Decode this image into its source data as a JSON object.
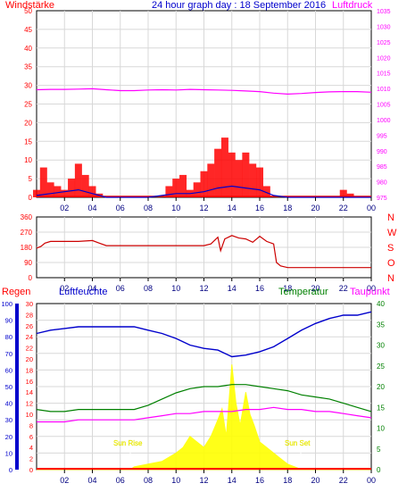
{
  "colors": {
    "wind": "#ff0000",
    "gust_bar": "#ff0000",
    "wind_avg": "#0000cc",
    "wind_direction_avg": "#008000",
    "pressure": "#ff00ff",
    "direction": "#cc0000",
    "humidity": "#0000cc",
    "temperature": "#008000",
    "dewpoint": "#ff00ff",
    "solar": "#ffff00",
    "rain": "#ff0000",
    "sun_label": "#ffff00",
    "plot_bg": "#ffffff",
    "grid": "#d8d8d8",
    "axis_red": "#ff0000",
    "axis_blue": "#0000cc",
    "axis_green": "#008000",
    "axis_magenta": "#ff00ff"
  },
  "header": {
    "title": "24 hour graph day : 18 September 2016",
    "left_label": "Windstärke",
    "right_label": "Luftdruck"
  },
  "chart_data": [
    {
      "type": "line",
      "panel": "wind-pressure",
      "title": "24 hour graph day : 18 September 2016",
      "x_ticks": [
        "02",
        "04",
        "06",
        "08",
        "10",
        "12",
        "14",
        "16",
        "18",
        "20",
        "22",
        "00"
      ],
      "x_range_hours": [
        0,
        24
      ],
      "y_left": {
        "label": "Windstärke",
        "range": [
          0,
          50
        ],
        "ticks": [
          0,
          5,
          10,
          15,
          20,
          25,
          30,
          35,
          40,
          45,
          50
        ]
      },
      "y_right": {
        "label": "Luftdruck",
        "range": [
          975,
          1035
        ],
        "ticks": [
          975,
          980,
          985,
          990,
          995,
          1000,
          1005,
          1010,
          1015,
          1020,
          1025,
          1030,
          1035
        ]
      },
      "grid": true,
      "series": [
        {
          "name": "Luftdruck",
          "axis": "right",
          "x": [
            0,
            1,
            2,
            3,
            4,
            5,
            6,
            7,
            8,
            9,
            10,
            11,
            12,
            13,
            14,
            15,
            16,
            17,
            18,
            19,
            20,
            21,
            22,
            23,
            24
          ],
          "y": [
            1009.6,
            1009.7,
            1009.7,
            1009.8,
            1009.9,
            1009.6,
            1009.3,
            1009.3,
            1009.5,
            1009.6,
            1009.5,
            1009.7,
            1009.6,
            1009.5,
            1009.4,
            1009.2,
            1009.0,
            1008.5,
            1008.2,
            1008.4,
            1008.7,
            1008.9,
            1009.0,
            1009.0,
            1008.8
          ]
        },
        {
          "name": "Windstärke",
          "axis": "left",
          "x": [
            0,
            0.5,
            1,
            1.5,
            2,
            2.5,
            3,
            3.5,
            4,
            4.5,
            5,
            5.5,
            6,
            6.5,
            7,
            7.5,
            8,
            8.5,
            9,
            9.5,
            10,
            10.5,
            11,
            11.5,
            12,
            12.5,
            13,
            13.5,
            14,
            14.5,
            15,
            15.5,
            16,
            16.5,
            17,
            17.5,
            18,
            18.5,
            19,
            19.5,
            20,
            20.5,
            21,
            21.5,
            22,
            22.5,
            23,
            23.5,
            24
          ],
          "y": [
            2,
            8,
            4,
            3,
            2,
            5,
            9,
            6,
            3,
            1,
            0,
            0,
            0,
            0,
            0,
            0,
            0,
            0,
            0,
            3,
            5,
            6,
            2,
            4,
            7,
            9,
            13,
            16,
            12,
            10,
            12,
            9,
            8,
            3,
            0,
            0,
            0,
            0,
            0,
            0,
            0,
            0,
            0,
            0,
            2,
            1,
            0,
            0,
            0
          ]
        },
        {
          "name": "Windstärke Mittel",
          "axis": "left",
          "x": [
            0,
            1,
            2,
            3,
            4,
            5,
            6,
            7,
            8,
            9,
            10,
            11,
            12,
            13,
            14,
            15,
            16,
            17,
            18,
            19,
            20,
            21,
            22,
            23,
            24
          ],
          "y": [
            0.5,
            1.0,
            1.5,
            2.0,
            1.0,
            0,
            0,
            0,
            0,
            0.5,
            1.0,
            1.0,
            1.5,
            2.5,
            3.0,
            2.5,
            2.0,
            0.5,
            0,
            0,
            0,
            0,
            0,
            0,
            0
          ]
        }
      ]
    },
    {
      "type": "line",
      "panel": "wind-direction",
      "x_ticks": [
        "02",
        "04",
        "06",
        "08",
        "10",
        "12",
        "14",
        "16",
        "18",
        "20",
        "22",
        "00"
      ],
      "x_range_hours": [
        0,
        24
      ],
      "y_left": {
        "range": [
          0,
          360
        ],
        "ticks": [
          0,
          90,
          180,
          270,
          360
        ]
      },
      "y_right": {
        "ticks": [
          "N",
          "W",
          "S",
          "O",
          "N"
        ]
      },
      "grid": true,
      "series": [
        {
          "name": "Windrichtung",
          "x": [
            0,
            0.3,
            0.6,
            1,
            2,
            3,
            4,
            4.5,
            5,
            6,
            8,
            10,
            12,
            12.5,
            13,
            13.2,
            13.5,
            14,
            14.5,
            15,
            15.5,
            16,
            16.5,
            17,
            17.2,
            17.5,
            18,
            19,
            20,
            21,
            22,
            23,
            24
          ],
          "y": [
            175,
            185,
            205,
            215,
            215,
            215,
            220,
            205,
            190,
            190,
            190,
            190,
            190,
            200,
            240,
            160,
            230,
            250,
            235,
            230,
            210,
            245,
            215,
            200,
            90,
            70,
            60,
            60,
            60,
            60,
            60,
            60,
            60
          ]
        }
      ]
    },
    {
      "type": "line",
      "panel": "humidity-temperature-solar",
      "x_ticks": [
        "02",
        "04",
        "06",
        "08",
        "10",
        "12",
        "14",
        "16",
        "18",
        "20",
        "22",
        "00"
      ],
      "x_range_hours": [
        0,
        24
      ],
      "labels": {
        "rain": "Regen",
        "humidity": "Luftfeuchte",
        "temperature": "Temperatur",
        "dewpoint": "Taupunkt"
      },
      "annotations": [
        "Sun Rise",
        "Sun Set"
      ],
      "y_axes": {
        "humidity": {
          "range": [
            0,
            100
          ],
          "ticks": [
            0,
            10,
            20,
            30,
            40,
            50,
            60,
            70,
            80,
            90,
            100
          ]
        },
        "temperature": {
          "range": [
            0,
            30
          ],
          "ticks": [
            0,
            2,
            4,
            6,
            8,
            10,
            12,
            14,
            16,
            18,
            20,
            22,
            24,
            26,
            28,
            30
          ]
        },
        "right": {
          "range": [
            0,
            40
          ],
          "ticks": [
            0,
            5,
            10,
            15,
            20,
            25,
            30,
            35,
            40
          ]
        }
      },
      "grid": true,
      "series": [
        {
          "name": "Luftfeuchte",
          "axis": "humidity",
          "x": [
            0,
            1,
            2,
            3,
            4,
            5,
            6,
            7,
            8,
            9,
            10,
            11,
            12,
            13,
            14,
            15,
            16,
            17,
            18,
            19,
            20,
            21,
            22,
            23,
            24
          ],
          "y": [
            82,
            84,
            85,
            86,
            86,
            86,
            86,
            86,
            84,
            82,
            79,
            75,
            73,
            72,
            68,
            69,
            71,
            74,
            79,
            84,
            88,
            91,
            93,
            93,
            95
          ]
        },
        {
          "name": "Temperatur",
          "axis": "right",
          "x": [
            0,
            1,
            2,
            3,
            4,
            5,
            6,
            7,
            8,
            9,
            10,
            11,
            12,
            13,
            14,
            15,
            16,
            17,
            18,
            19,
            20,
            21,
            22,
            23,
            24
          ],
          "y": [
            14.5,
            14.0,
            14.0,
            14.5,
            14.5,
            14.5,
            14.5,
            14.5,
            15.5,
            17.0,
            18.5,
            19.5,
            20.0,
            20.0,
            20.5,
            20.5,
            20.0,
            19.5,
            19.0,
            18.0,
            17.5,
            17.0,
            16.0,
            15.0,
            14.0
          ]
        },
        {
          "name": "Taupunkt",
          "axis": "right",
          "x": [
            0,
            1,
            2,
            3,
            4,
            5,
            6,
            7,
            8,
            9,
            10,
            11,
            12,
            13,
            14,
            15,
            16,
            17,
            18,
            19,
            20,
            21,
            22,
            23,
            24
          ],
          "y": [
            11.5,
            11.5,
            11.5,
            12.0,
            12.0,
            12.0,
            12.0,
            12.0,
            12.5,
            13.0,
            13.5,
            13.5,
            14.0,
            14.0,
            14.0,
            14.5,
            14.5,
            15.0,
            14.5,
            14.5,
            14.0,
            14.0,
            13.5,
            13.0,
            12.5
          ]
        },
        {
          "name": "Solar",
          "axis": "temperature",
          "x": [
            0,
            6,
            6.7,
            7,
            8,
            9,
            10,
            10.5,
            11,
            11.5,
            12,
            12.5,
            13,
            13.3,
            13.6,
            14,
            14.3,
            14.6,
            15,
            15.3,
            15.6,
            16,
            16.5,
            17,
            17.5,
            18,
            18.5,
            19,
            24
          ],
          "y": [
            0,
            0,
            0,
            0.5,
            1,
            1.5,
            3,
            4,
            6,
            5,
            4,
            6,
            9,
            11,
            6,
            19,
            12,
            8,
            14,
            10,
            8,
            5,
            4,
            3,
            2,
            1,
            0.5,
            0,
            0
          ]
        },
        {
          "name": "Regen",
          "axis": "temperature",
          "x": [
            0,
            24
          ],
          "y": [
            0,
            0
          ]
        }
      ]
    }
  ]
}
